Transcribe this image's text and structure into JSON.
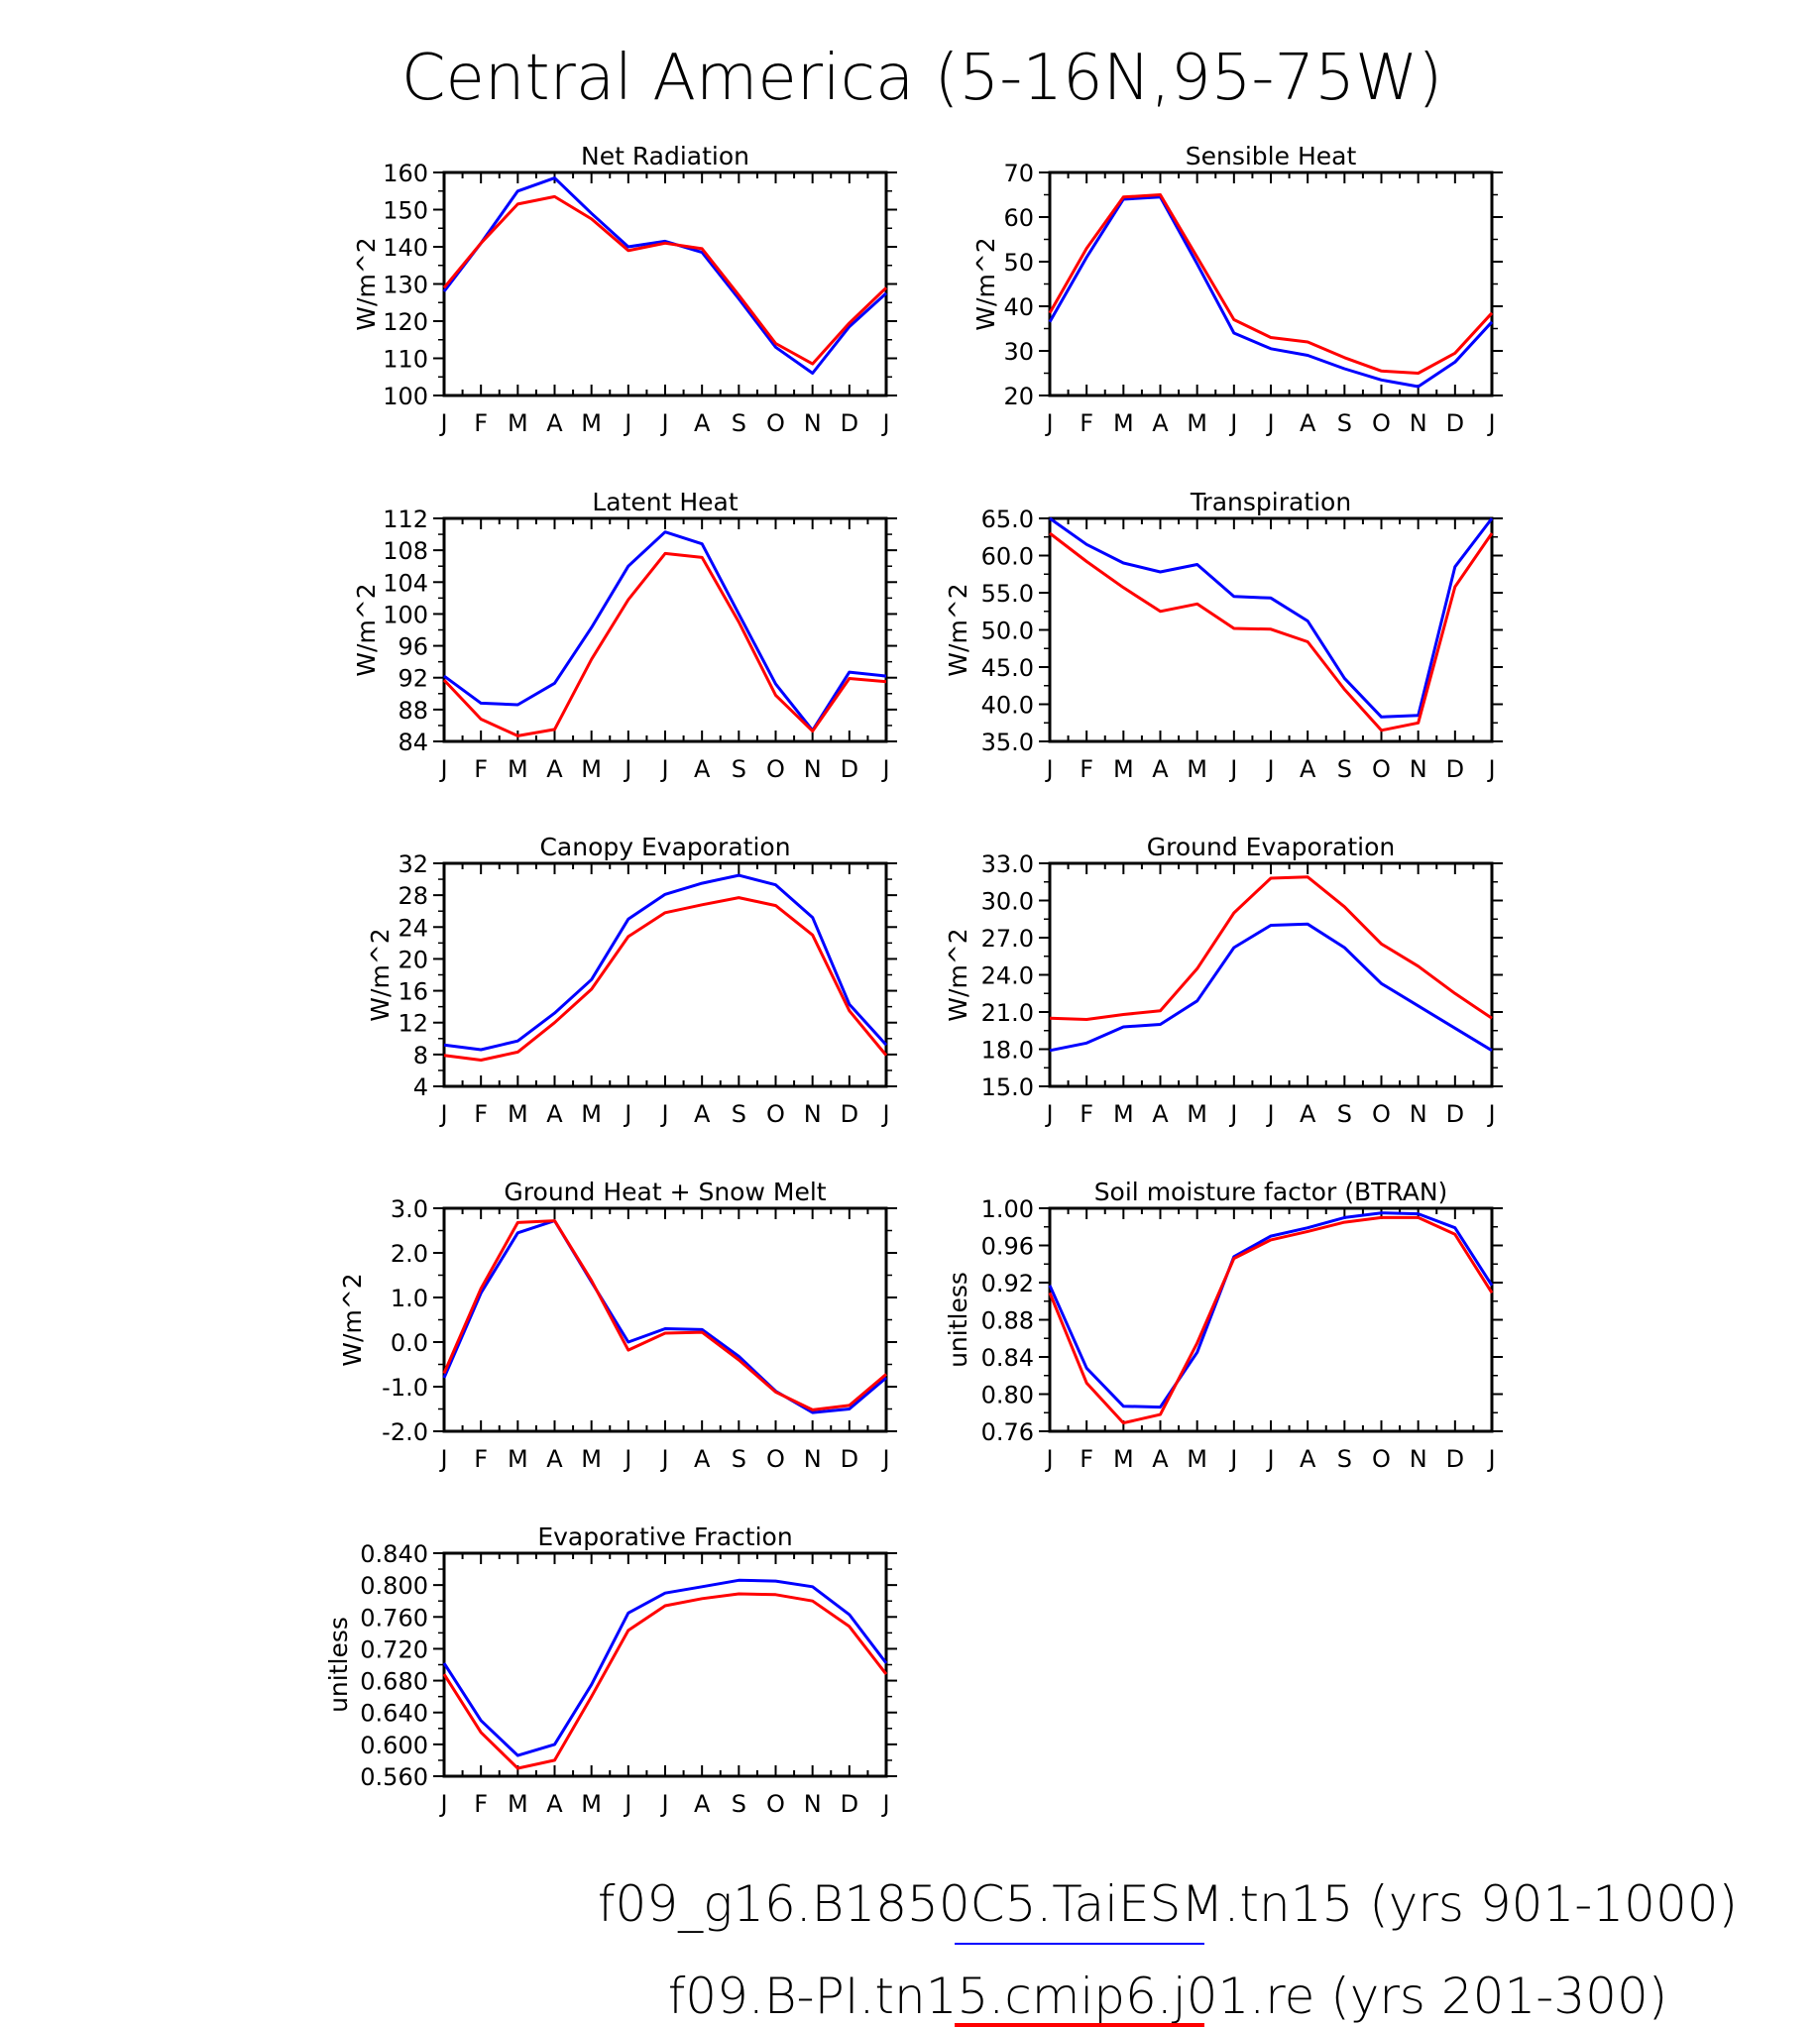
{
  "figure": {
    "title": "Central America (5-16N,95-75W)",
    "legend": [
      {
        "label": "f09_g16.B1850C5.TaiESM.tn15 (yrs 901-1000)",
        "color": "#0000ff"
      },
      {
        "label": "f09.B-PI.tn15.cmip6.j01.re (yrs 201-300)",
        "color": "#ff0000"
      }
    ]
  },
  "chart_data": [
    {
      "type": "line",
      "title": "Net Radiation",
      "ylabel": "W/m^2",
      "categories": [
        "J",
        "F",
        "M",
        "A",
        "M",
        "J",
        "J",
        "A",
        "S",
        "O",
        "N",
        "D",
        "J"
      ],
      "ylim": [
        100,
        160
      ],
      "yticks": [
        "100",
        "110",
        "120",
        "130",
        "140",
        "150",
        "160"
      ],
      "yminor": 5,
      "series": [
        {
          "name": "f09_g16.B1850C5.TaiESM.tn15 (yrs 901-1000)",
          "color": "#0000ff",
          "values": [
            128,
            141,
            155,
            158.5,
            149,
            140,
            141.5,
            138.5,
            126,
            113,
            106,
            118.5,
            127.5
          ]
        },
        {
          "name": "f09.B-PI.tn15.cmip6.j01.re (yrs 201-300)",
          "color": "#ff0000",
          "values": [
            129,
            141,
            151.5,
            153.5,
            147.5,
            139,
            141,
            139.5,
            127,
            114,
            108.5,
            119.5,
            129
          ]
        }
      ]
    },
    {
      "type": "line",
      "title": "Sensible Heat",
      "ylabel": "W/m^2",
      "categories": [
        "J",
        "F",
        "M",
        "A",
        "M",
        "J",
        "J",
        "A",
        "S",
        "O",
        "N",
        "D",
        "J"
      ],
      "ylim": [
        20,
        70
      ],
      "yticks": [
        "20",
        "30",
        "40",
        "50",
        "60",
        "70"
      ],
      "yminor": 5,
      "series": [
        {
          "name": "f09_g16.B1850C5.TaiESM.tn15 (yrs 901-1000)",
          "color": "#0000ff",
          "values": [
            36.5,
            51,
            64,
            64.5,
            49.5,
            34,
            30.5,
            29,
            26,
            23.5,
            22,
            27.5,
            36.5
          ]
        },
        {
          "name": "f09.B-PI.tn15.cmip6.j01.re (yrs 201-300)",
          "color": "#ff0000",
          "values": [
            38.5,
            53,
            64.5,
            65,
            51,
            37,
            33,
            32,
            28.5,
            25.5,
            25,
            29.5,
            38.5
          ]
        }
      ]
    },
    {
      "type": "line",
      "title": "Latent Heat",
      "ylabel": "W/m^2",
      "categories": [
        "J",
        "F",
        "M",
        "A",
        "M",
        "J",
        "J",
        "A",
        "S",
        "O",
        "N",
        "D",
        "J"
      ],
      "ylim": [
        84,
        112
      ],
      "yticks": [
        "84",
        "88",
        "92",
        "96",
        "100",
        "104",
        "108",
        "112"
      ],
      "yminor": 2,
      "series": [
        {
          "name": "f09_g16.B1850C5.TaiESM.tn15 (yrs 901-1000)",
          "color": "#0000ff",
          "values": [
            92.2,
            88.8,
            88.6,
            91.3,
            98.3,
            106,
            110.3,
            108.8,
            100,
            91.2,
            85.4,
            92.7,
            92.2
          ]
        },
        {
          "name": "f09.B-PI.tn15.cmip6.j01.re (yrs 201-300)",
          "color": "#ff0000",
          "values": [
            91.7,
            86.8,
            84.7,
            85.5,
            94.3,
            101.8,
            107.6,
            107.1,
            99,
            89.8,
            85.3,
            91.9,
            91.5
          ]
        }
      ]
    },
    {
      "type": "line",
      "title": "Transpiration",
      "ylabel": "W/m^2",
      "categories": [
        "J",
        "F",
        "M",
        "A",
        "M",
        "J",
        "J",
        "A",
        "S",
        "O",
        "N",
        "D",
        "J"
      ],
      "ylim": [
        35,
        65
      ],
      "yticks": [
        "35.0",
        "40.0",
        "45.0",
        "50.0",
        "55.0",
        "60.0",
        "65.0"
      ],
      "yminor": 2.5,
      "series": [
        {
          "name": "f09_g16.B1850C5.TaiESM.tn15 (yrs 901-1000)",
          "color": "#0000ff",
          "values": [
            65,
            61.5,
            59,
            57.8,
            58.8,
            54.5,
            54.3,
            51.2,
            43.5,
            38.3,
            38.5,
            58.5,
            65
          ]
        },
        {
          "name": "f09.B-PI.tn15.cmip6.j01.re (yrs 201-300)",
          "color": "#ff0000",
          "values": [
            63,
            59.2,
            55.7,
            52.5,
            53.5,
            50.2,
            50.1,
            48.4,
            42,
            36.5,
            37.5,
            55.8,
            63
          ]
        }
      ]
    },
    {
      "type": "line",
      "title": "Canopy Evaporation",
      "ylabel": "W/m^2",
      "categories": [
        "J",
        "F",
        "M",
        "A",
        "M",
        "J",
        "J",
        "A",
        "S",
        "O",
        "N",
        "D",
        "J"
      ],
      "ylim": [
        4,
        32
      ],
      "yticks": [
        "4",
        "8",
        "12",
        "16",
        "20",
        "24",
        "28",
        "32"
      ],
      "yminor": 2,
      "series": [
        {
          "name": "f09_g16.B1850C5.TaiESM.tn15 (yrs 901-1000)",
          "color": "#0000ff",
          "values": [
            9.2,
            8.6,
            9.7,
            13.2,
            17.4,
            25,
            28.1,
            29.5,
            30.5,
            29.3,
            25.2,
            14.3,
            9.2
          ]
        },
        {
          "name": "f09.B-PI.tn15.cmip6.j01.re (yrs 201-300)",
          "color": "#ff0000",
          "values": [
            7.9,
            7.3,
            8.3,
            12,
            16.2,
            22.8,
            25.8,
            26.8,
            27.7,
            26.7,
            23,
            13.5,
            7.9
          ]
        }
      ]
    },
    {
      "type": "line",
      "title": "Ground Evaporation",
      "ylabel": "W/m^2",
      "categories": [
        "J",
        "F",
        "M",
        "A",
        "M",
        "J",
        "J",
        "A",
        "S",
        "O",
        "N",
        "D",
        "J"
      ],
      "ylim": [
        15,
        33
      ],
      "yticks": [
        "15.0",
        "18.0",
        "21.0",
        "24.0",
        "27.0",
        "30.0",
        "33.0"
      ],
      "yminor": 1.5,
      "series": [
        {
          "name": "f09_g16.B1850C5.TaiESM.tn15 (yrs 901-1000)",
          "color": "#0000ff",
          "values": [
            17.9,
            18.5,
            19.8,
            20,
            21.9,
            26.2,
            28,
            28.1,
            26.2,
            23.3,
            21.5,
            19.7,
            17.9
          ]
        },
        {
          "name": "f09.B-PI.tn15.cmip6.j01.re (yrs 201-300)",
          "color": "#ff0000",
          "values": [
            20.5,
            20.4,
            20.8,
            21.1,
            24.5,
            29,
            31.8,
            31.9,
            29.5,
            26.5,
            24.7,
            22.5,
            20.5
          ]
        }
      ]
    },
    {
      "type": "line",
      "title": "Ground Heat + Snow Melt",
      "ylabel": "W/m^2",
      "categories": [
        "J",
        "F",
        "M",
        "A",
        "M",
        "J",
        "J",
        "A",
        "S",
        "O",
        "N",
        "D",
        "J"
      ],
      "ylim": [
        -2,
        3
      ],
      "yticks": [
        "-2.0",
        "-1.0",
        "0.0",
        "1.0",
        "2.0",
        "3.0"
      ],
      "yminor": 0.5,
      "series": [
        {
          "name": "f09_g16.B1850C5.TaiESM.tn15 (yrs 901-1000)",
          "color": "#0000ff",
          "values": [
            -0.8,
            1.1,
            2.45,
            2.72,
            1.35,
            0,
            0.3,
            0.28,
            -0.32,
            -1.1,
            -1.58,
            -1.5,
            -0.8
          ]
        },
        {
          "name": "f09.B-PI.tn15.cmip6.j01.re (yrs 201-300)",
          "color": "#ff0000",
          "values": [
            -0.7,
            1.2,
            2.68,
            2.72,
            1.38,
            -0.18,
            0.2,
            0.22,
            -0.4,
            -1.12,
            -1.52,
            -1.42,
            -0.72
          ]
        }
      ]
    },
    {
      "type": "line",
      "title": "Soil moisture factor (BTRAN)",
      "ylabel": "unitless",
      "categories": [
        "J",
        "F",
        "M",
        "A",
        "M",
        "J",
        "J",
        "A",
        "S",
        "O",
        "N",
        "D",
        "J"
      ],
      "ylim": [
        0.76,
        1.0
      ],
      "yticks": [
        "0.76",
        "0.80",
        "0.84",
        "0.88",
        "0.92",
        "0.96",
        "1.00"
      ],
      "yminor": 0.02,
      "series": [
        {
          "name": "f09_g16.B1850C5.TaiESM.tn15 (yrs 901-1000)",
          "color": "#0000ff",
          "values": [
            0.917,
            0.828,
            0.787,
            0.786,
            0.845,
            0.948,
            0.97,
            0.979,
            0.99,
            0.995,
            0.994,
            0.979,
            0.917
          ]
        },
        {
          "name": "f09.B-PI.tn15.cmip6.j01.re (yrs 201-300)",
          "color": "#ff0000",
          "values": [
            0.909,
            0.812,
            0.769,
            0.778,
            0.855,
            0.946,
            0.966,
            0.975,
            0.985,
            0.99,
            0.99,
            0.972,
            0.909
          ]
        }
      ]
    },
    {
      "type": "line",
      "title": "Evaporative Fraction",
      "ylabel": "unitless",
      "categories": [
        "J",
        "F",
        "M",
        "A",
        "M",
        "J",
        "J",
        "A",
        "S",
        "O",
        "N",
        "D",
        "J"
      ],
      "ylim": [
        0.56,
        0.84
      ],
      "yticks": [
        "0.560",
        "0.600",
        "0.640",
        "0.680",
        "0.720",
        "0.760",
        "0.800",
        "0.840"
      ],
      "yminor": 0.02,
      "series": [
        {
          "name": "f09_g16.B1850C5.TaiESM.tn15 (yrs 901-1000)",
          "color": "#0000ff",
          "values": [
            0.702,
            0.63,
            0.586,
            0.6,
            0.675,
            0.765,
            0.79,
            0.798,
            0.806,
            0.805,
            0.798,
            0.763,
            0.702
          ]
        },
        {
          "name": "f09.B-PI.tn15.cmip6.j01.re (yrs 201-300)",
          "color": "#ff0000",
          "values": [
            0.688,
            0.615,
            0.57,
            0.58,
            0.66,
            0.743,
            0.774,
            0.783,
            0.789,
            0.788,
            0.78,
            0.748,
            0.688
          ]
        }
      ]
    }
  ]
}
